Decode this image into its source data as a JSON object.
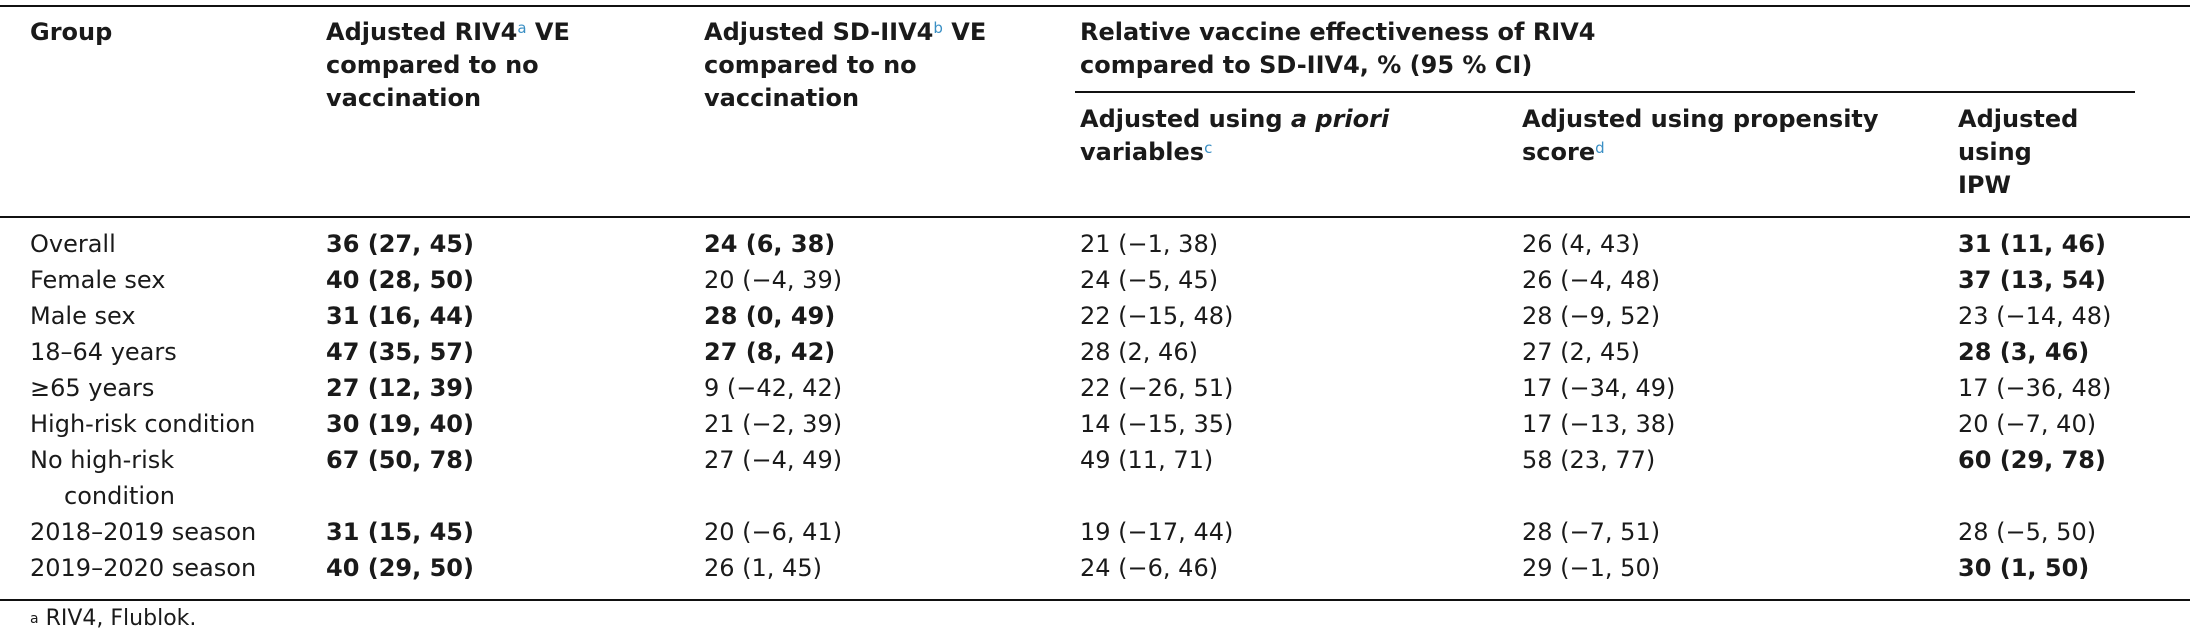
{
  "headers": {
    "group": "Group",
    "riv4_prefix": "Adjusted RIV4",
    "riv4_mark": "a",
    "riv4_suffix": "VE",
    "riv4_rest": "compared to no vaccination",
    "sdiiv4_prefix": "Adjusted SD-IIV4",
    "sdiiv4_mark": "b",
    "sdiiv4_suffix": "VE",
    "sdiiv4_rest": "compared to no vaccination",
    "relative_line1": "Relative vaccine effectiveness of RIV4",
    "relative_line2": "compared to SD-IIV4, % (95 % CI)",
    "apriori_prefix": "Adjusted using",
    "apriori_em": "a priori",
    "apriori_line2": "variables",
    "apriori_mark": "c",
    "propensity_line1": "Adjusted using propensity",
    "propensity_line2": "score",
    "propensity_mark": "d",
    "ipw_line1": "Adjusted",
    "ipw_line2": "using",
    "ipw_line3": "IPW"
  },
  "rows": [
    {
      "group": "Overall",
      "riv4": "36 (27, 45)",
      "sdiiv4": "24 (6, 38)",
      "apriori": "21 (−1, 38)",
      "propensity": "26 (4, 43)",
      "ipw": "31 (11, 46)",
      "bold": [
        "riv4",
        "sdiiv4",
        "ipw"
      ]
    },
    {
      "group": "Female sex",
      "riv4": "40 (28, 50)",
      "sdiiv4": "20 (−4, 39)",
      "apriori": "24 (−5, 45)",
      "propensity": "26 (−4, 48)",
      "ipw": "37 (13, 54)",
      "bold": [
        "riv4",
        "ipw"
      ]
    },
    {
      "group": "Male sex",
      "riv4": "31 (16, 44)",
      "sdiiv4": "28 (0, 49)",
      "apriori": "22 (−15, 48)",
      "propensity": "28 (−9, 52)",
      "ipw": "23 (−14, 48)",
      "bold": [
        "riv4",
        "sdiiv4"
      ]
    },
    {
      "group": "18–64 years",
      "riv4": "47 (35, 57)",
      "sdiiv4": "27 (8, 42)",
      "apriori": "28 (2, 46)",
      "propensity": "27 (2, 45)",
      "ipw": "28 (3, 46)",
      "bold": [
        "riv4",
        "sdiiv4",
        "ipw"
      ]
    },
    {
      "group": "≥65 years",
      "riv4": "27 (12, 39)",
      "sdiiv4": "9 (−42, 42)",
      "apriori": "22 (−26, 51)",
      "propensity": "17 (−34, 49)",
      "ipw": "17 (−36, 48)",
      "bold": [
        "riv4"
      ]
    },
    {
      "group": "High-risk condition",
      "riv4": "30 (19, 40)",
      "sdiiv4": "21 (−2, 39)",
      "apriori": "14 (−15, 35)",
      "propensity": "17 (−13, 38)",
      "ipw": "20 (−7, 40)",
      "bold": [
        "riv4"
      ]
    },
    {
      "group": "No high-risk",
      "group_cont": "condition",
      "riv4": "67 (50, 78)",
      "sdiiv4": "27 (−4, 49)",
      "apriori": "49 (11, 71)",
      "propensity": "58 (23, 77)",
      "ipw": "60 (29, 78)",
      "bold": [
        "riv4",
        "ipw"
      ]
    },
    {
      "group": "2018–2019 season",
      "riv4": "31 (15, 45)",
      "sdiiv4": "20 (−6, 41)",
      "apriori": "19 (−17, 44)",
      "propensity": "28 (−7, 51)",
      "ipw": "28 (−5, 50)",
      "bold": [
        "riv4"
      ]
    },
    {
      "group": "2019–2020 season",
      "riv4": "40 (29, 50)",
      "sdiiv4": "26 (1, 45)",
      "apriori": "24 (−6, 46)",
      "propensity": "29 (−1, 50)",
      "ipw": "30 (1, 50)",
      "bold": [
        "riv4",
        "ipw"
      ]
    }
  ],
  "footnote": {
    "mark": "a",
    "text": "RIV4, Flublok."
  }
}
